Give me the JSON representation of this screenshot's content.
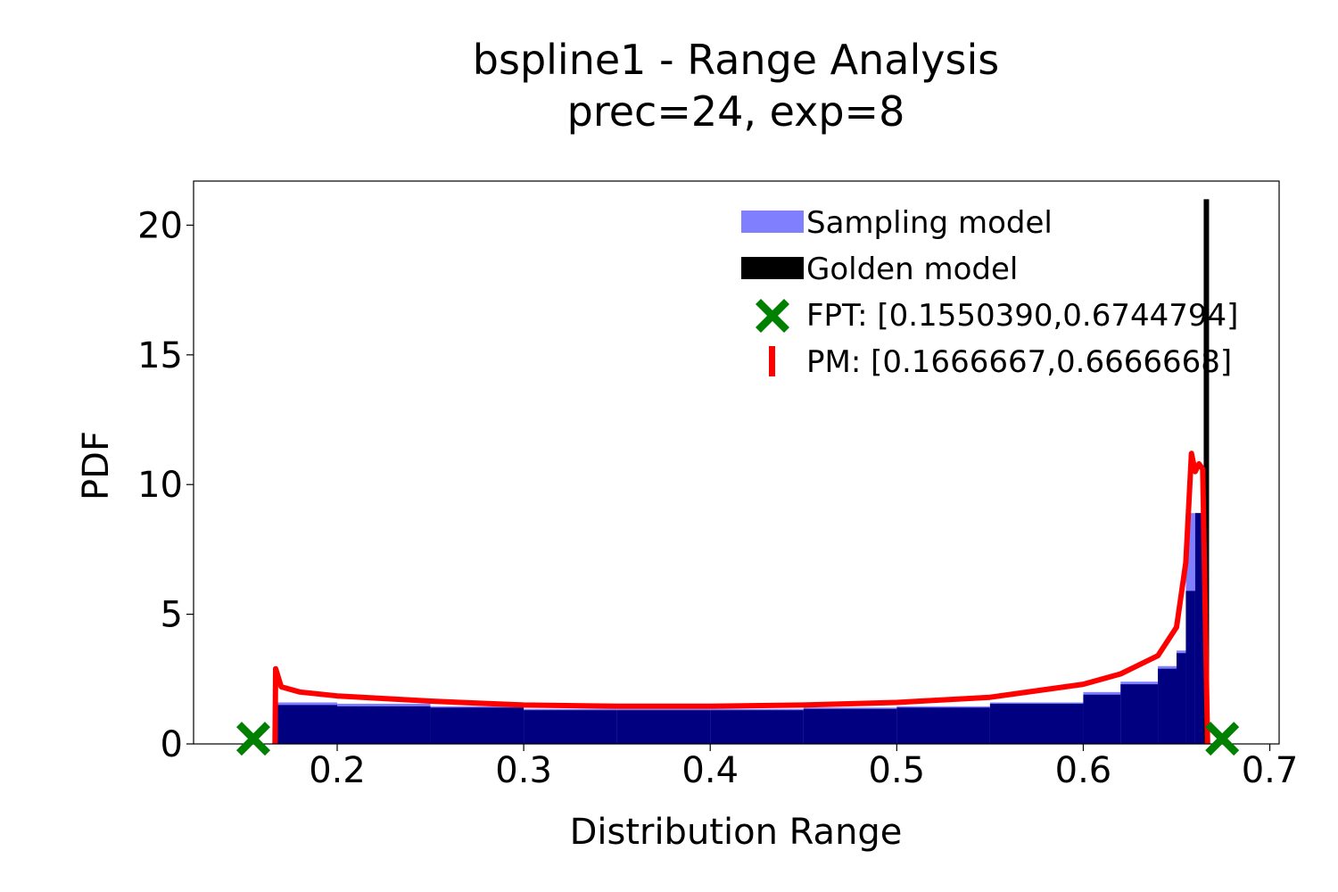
{
  "chart_data": {
    "type": "bar",
    "title": "bspline1 - Range Analysis",
    "subtitle": "prec=24, exp=8",
    "xlabel": "Distribution Range",
    "ylabel": "PDF",
    "xlim": [
      0.123,
      0.705
    ],
    "ylim": [
      0,
      21.7
    ],
    "xticks": [
      "0.2",
      "0.3",
      "0.4",
      "0.5",
      "0.6",
      "0.7"
    ],
    "xtick_values": [
      0.2,
      0.3,
      0.4,
      0.5,
      0.6,
      0.7
    ],
    "yticks": [
      "0",
      "5",
      "10",
      "15",
      "20"
    ],
    "ytick_values": [
      0,
      5,
      10,
      15,
      20
    ],
    "grid": false,
    "legend_position": "top-right",
    "colors": {
      "sampling": "#8080ff",
      "sampling_overlap": "#000080",
      "golden": "#000000",
      "fpt": "#008000",
      "pm": "#ff0000"
    },
    "series": [
      {
        "name": "Sampling model",
        "kind": "histogram",
        "x": [
          0.168,
          0.2,
          0.25,
          0.3,
          0.35,
          0.4,
          0.45,
          0.5,
          0.55,
          0.6,
          0.62,
          0.64,
          0.65,
          0.655,
          0.66,
          0.666
        ],
        "values": [
          1.6,
          1.55,
          1.45,
          1.35,
          1.35,
          1.35,
          1.4,
          1.45,
          1.6,
          2.0,
          2.4,
          3.0,
          3.6,
          8.9,
          8.9,
          0
        ]
      },
      {
        "name": "Golden model",
        "kind": "histogram",
        "x": [
          0.168,
          0.2,
          0.25,
          0.3,
          0.35,
          0.4,
          0.45,
          0.5,
          0.55,
          0.6,
          0.62,
          0.64,
          0.65,
          0.655,
          0.66,
          0.666
        ],
        "values": [
          1.5,
          1.45,
          1.4,
          1.3,
          1.3,
          1.3,
          1.35,
          1.4,
          1.55,
          1.9,
          2.3,
          2.9,
          3.5,
          5.9,
          8.9,
          21.0
        ]
      },
      {
        "name": "FPT: [0.1550390,0.6744794]",
        "kind": "markers",
        "x": [
          0.155039,
          0.6744794
        ],
        "values": [
          0.2,
          0.2
        ]
      },
      {
        "name": "PM: [0.1666667,0.6666668]",
        "kind": "curve",
        "x": [
          0.1666667,
          0.167,
          0.17,
          0.18,
          0.2,
          0.25,
          0.3,
          0.35,
          0.4,
          0.45,
          0.5,
          0.55,
          0.6,
          0.62,
          0.64,
          0.65,
          0.655,
          0.658,
          0.66,
          0.662,
          0.664,
          0.6666668
        ],
        "values": [
          0,
          2.9,
          2.2,
          2.0,
          1.85,
          1.65,
          1.5,
          1.45,
          1.45,
          1.5,
          1.6,
          1.8,
          2.3,
          2.7,
          3.4,
          4.5,
          7.0,
          11.2,
          10.5,
          10.8,
          10.6,
          0
        ]
      }
    ]
  }
}
